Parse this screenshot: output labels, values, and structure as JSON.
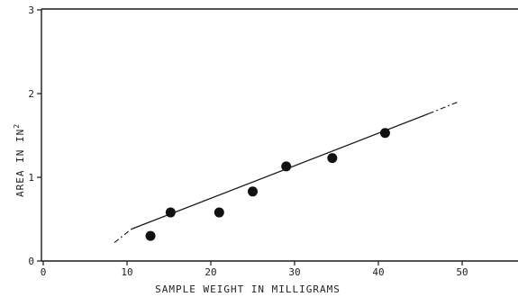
{
  "chart_data": {
    "type": "scatter",
    "title": "",
    "xlabel": "SAMPLE WEIGHT IN MILLIGRAMS",
    "ylabel": "AREA IN IN",
    "ylabel_superscript": "2",
    "xlim": [
      0,
      57
    ],
    "ylim": [
      0,
      3
    ],
    "xticks": [
      0,
      10,
      20,
      30,
      40,
      50
    ],
    "yticks": [
      0,
      1,
      2,
      3
    ],
    "xtick_labels": [
      "0",
      "10",
      "20",
      "30",
      "40",
      "50"
    ],
    "ytick_labels": [
      "0",
      "1",
      "2",
      "3"
    ],
    "grid": false,
    "legend": null,
    "series": [
      {
        "points": [
          {
            "x": 12.8,
            "y": 0.3
          },
          {
            "x": 15.2,
            "y": 0.58
          },
          {
            "x": 21.0,
            "y": 0.58
          },
          {
            "x": 25.0,
            "y": 0.83
          },
          {
            "x": 29.0,
            "y": 1.13
          },
          {
            "x": 34.5,
            "y": 1.23
          },
          {
            "x": 40.8,
            "y": 1.53
          }
        ]
      }
    ],
    "fit_line": {
      "solid_from": [
        10.5,
        0.38
      ],
      "solid_to": [
        46.0,
        1.76
      ],
      "dashed_from": [
        8.5,
        0.22
      ],
      "dashed_to": [
        49.5,
        1.9
      ]
    }
  }
}
